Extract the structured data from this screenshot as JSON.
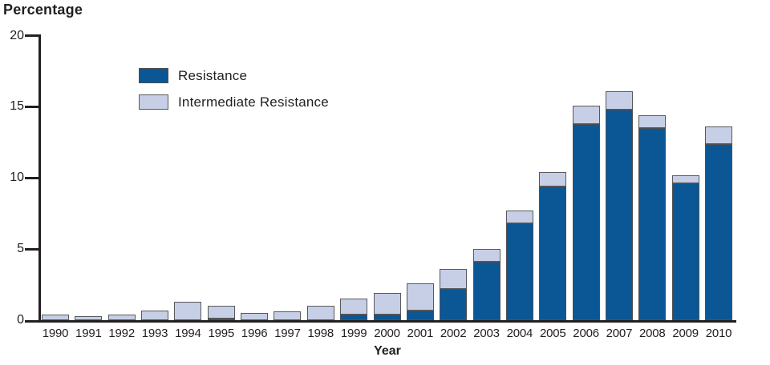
{
  "figure": {
    "y_axis_title": "Percentage",
    "x_axis_title": "Year"
  },
  "chart_data": {
    "type": "bar",
    "stacked": true,
    "title": "",
    "ylabel": "Percentage",
    "xlabel": "Year",
    "ylim": [
      0,
      20
    ],
    "yticks": [
      0,
      5,
      10,
      15,
      20
    ],
    "grid": false,
    "legend_position": "inside-upper-left",
    "categories": [
      "1990",
      "1991",
      "1992",
      "1993",
      "1994",
      "1995",
      "1996",
      "1997",
      "1998",
      "1999",
      "2000",
      "2001",
      "2002",
      "2003",
      "2004",
      "2005",
      "2006",
      "2007",
      "2008",
      "2009",
      "2010"
    ],
    "series": [
      {
        "name": "Resistance",
        "color": "#0b5796",
        "values": [
          0,
          0,
          0,
          0,
          0,
          0.1,
          0,
          0,
          0,
          0.4,
          0.4,
          0.7,
          2.2,
          4.1,
          6.8,
          9.4,
          13.8,
          14.8,
          13.5,
          9.6,
          12.4
        ]
      },
      {
        "name": "Intermediate Resistance",
        "color": "#c6cfe5",
        "values": [
          0.4,
          0.3,
          0.4,
          0.7,
          1.3,
          0.9,
          0.5,
          0.6,
          1.0,
          1.1,
          1.5,
          1.9,
          1.4,
          0.9,
          0.9,
          1.0,
          1.3,
          1.3,
          0.9,
          0.6,
          1.2
        ]
      }
    ]
  },
  "colors": {
    "axis": "#231f20",
    "text": "#231f20",
    "bar_border": "#58595b",
    "background": "#ffffff"
  }
}
